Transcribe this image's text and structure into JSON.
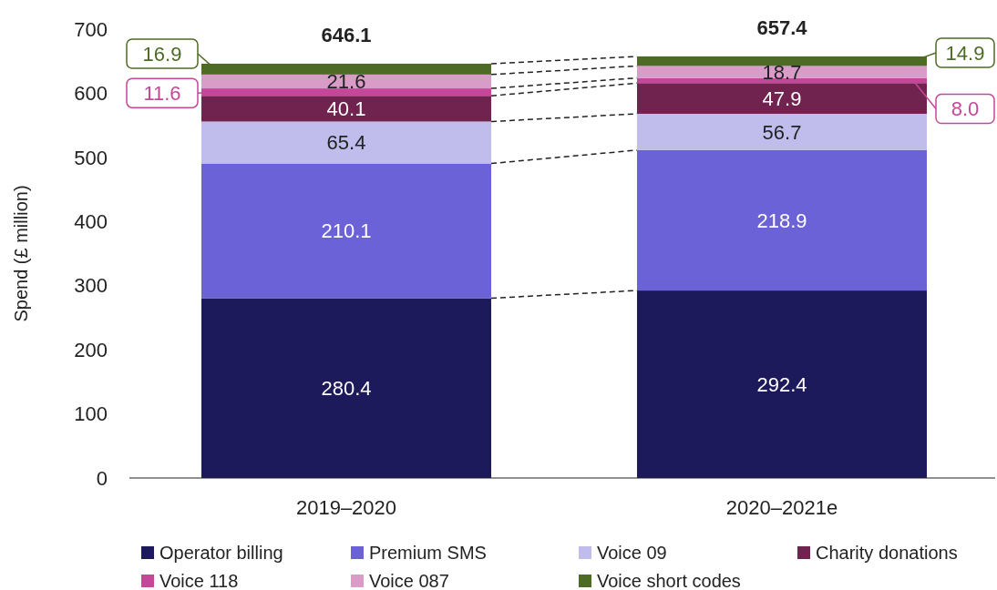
{
  "chart_data": {
    "type": "bar",
    "stacked": true,
    "ylabel": "Spend (£ million)",
    "categories": [
      "2019–2020",
      "2020–2021e"
    ],
    "ylim": [
      0,
      700
    ],
    "yticks": [
      0,
      100,
      200,
      300,
      400,
      500,
      600,
      700
    ],
    "grid": false,
    "legend": "bottom",
    "totals": [
      "646.1",
      "657.4"
    ],
    "series": [
      {
        "name": "Operator billing",
        "color": "#1c1a5a",
        "values": [
          280.4,
          292.4
        ],
        "value_labels": [
          "280.4",
          "292.4"
        ]
      },
      {
        "name": "Premium SMS",
        "color": "#6a62d6",
        "values": [
          210.1,
          218.9
        ],
        "value_labels": [
          "210.1",
          "218.9"
        ]
      },
      {
        "name": "Voice 09",
        "color": "#c0bcec",
        "values": [
          65.4,
          56.7
        ],
        "value_labels": [
          "65.4",
          "56.7"
        ]
      },
      {
        "name": "Charity donations",
        "color": "#70234e",
        "values": [
          40.1,
          47.9
        ],
        "value_labels": [
          "40.1",
          "47.9"
        ]
      },
      {
        "name": "Voice 118",
        "color": "#c4479a",
        "values": [
          11.6,
          8.0
        ],
        "value_labels": [
          "11.6",
          "8.0"
        ]
      },
      {
        "name": "Voice 087",
        "color": "#d99cc9",
        "values": [
          21.6,
          18.7
        ],
        "value_labels": [
          "21.6",
          "18.7"
        ]
      },
      {
        "name": "Voice short codes",
        "color": "#4e6b25",
        "values": [
          16.9,
          14.9
        ],
        "value_labels": [
          "16.9",
          "14.9"
        ]
      }
    ]
  }
}
